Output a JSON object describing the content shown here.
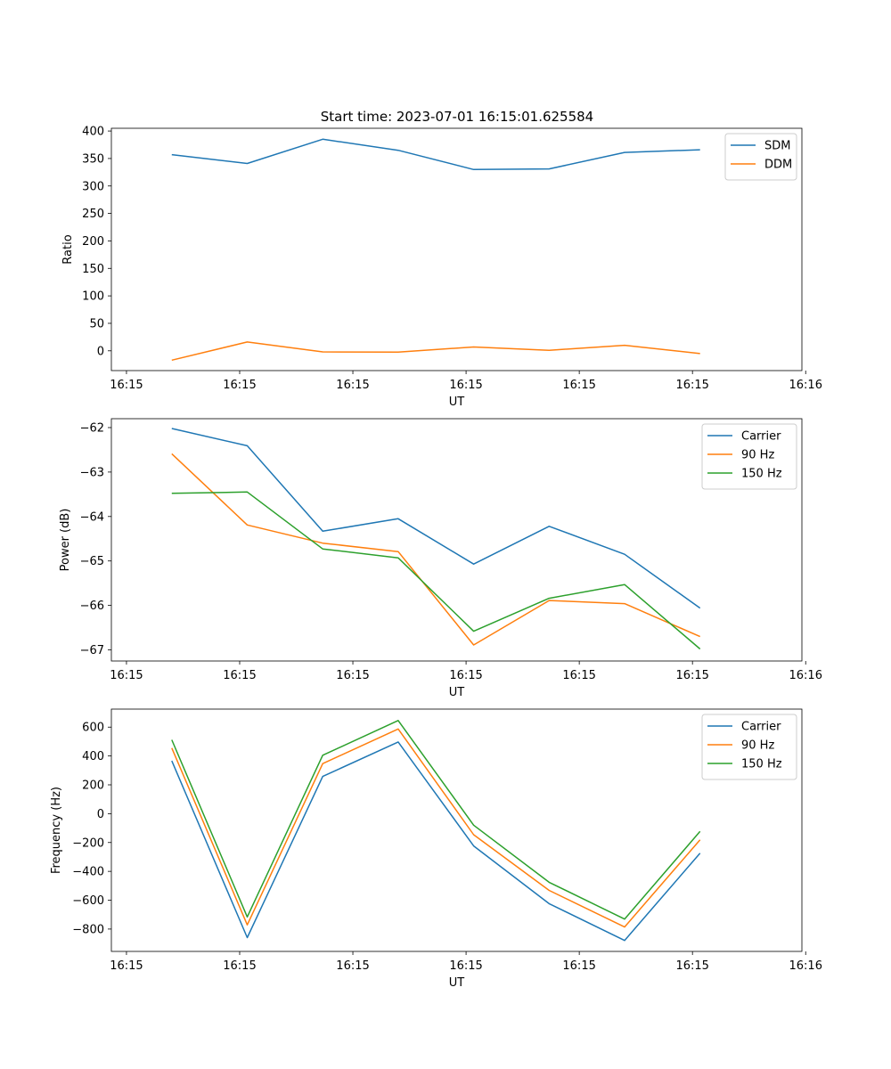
{
  "figure_title": "Start time: 2023-07-01 16:15:01.625584",
  "chart_data": [
    {
      "type": "line",
      "title": "Start time: 2023-07-01 16:15:01.625584",
      "xlabel": "UT",
      "ylabel": "Ratio",
      "x": [
        1,
        2,
        3,
        4,
        5,
        6,
        7,
        8
      ],
      "xlim": [
        0.2,
        9.35
      ],
      "xticks": [
        0.4,
        1.9,
        3.4,
        4.9,
        6.4,
        7.9,
        9.4
      ],
      "xtick_labels": [
        "16:15",
        "16:15",
        "16:15",
        "16:15",
        "16:15",
        "16:15",
        "16:16"
      ],
      "ylim": [
        -36,
        405
      ],
      "yticks": [
        0,
        50,
        100,
        150,
        200,
        250,
        300,
        350,
        400
      ],
      "legend": "upper right",
      "series": [
        {
          "name": "SDM",
          "color": "#1f77b4",
          "values": [
            357,
            341,
            385,
            365,
            330,
            331,
            361,
            366
          ]
        },
        {
          "name": "DDM",
          "color": "#ff7f0e",
          "values": [
            -17,
            16,
            -2,
            -2.5,
            7,
            1,
            10,
            -5
          ]
        }
      ]
    },
    {
      "type": "line",
      "title": "",
      "xlabel": "UT",
      "ylabel": "Power (dB)",
      "x": [
        1,
        2,
        3,
        4,
        5,
        6,
        7,
        8
      ],
      "xlim": [
        0.2,
        9.35
      ],
      "xticks": [
        0.4,
        1.9,
        3.4,
        4.9,
        6.4,
        7.9,
        9.4
      ],
      "xtick_labels": [
        "16:15",
        "16:15",
        "16:15",
        "16:15",
        "16:15",
        "16:15",
        "16:16"
      ],
      "ylim": [
        -67.25,
        -61.8
      ],
      "yticks": [
        -67,
        -66,
        -65,
        -64,
        -63,
        -62
      ],
      "legend": "upper right",
      "series": [
        {
          "name": "Carrier",
          "color": "#1f77b4",
          "values": [
            -62.02,
            -62.41,
            -64.33,
            -64.05,
            -65.07,
            -64.22,
            -64.85,
            -66.06
          ]
        },
        {
          "name": "90 Hz",
          "color": "#ff7f0e",
          "values": [
            -62.59,
            -64.19,
            -64.6,
            -64.79,
            -66.89,
            -65.89,
            -65.96,
            -66.7
          ]
        },
        {
          "name": "150 Hz",
          "color": "#2ca02c",
          "values": [
            -63.48,
            -63.45,
            -64.73,
            -64.93,
            -66.58,
            -65.84,
            -65.53,
            -66.98
          ]
        }
      ]
    },
    {
      "type": "line",
      "title": "",
      "xlabel": "UT",
      "ylabel": "Frequency (Hz)",
      "x": [
        1,
        2,
        3,
        4,
        5,
        6,
        7,
        8
      ],
      "xlim": [
        0.2,
        9.35
      ],
      "xticks": [
        0.4,
        1.9,
        3.4,
        4.9,
        6.4,
        7.9,
        9.4
      ],
      "xtick_labels": [
        "16:15",
        "16:15",
        "16:15",
        "16:15",
        "16:15",
        "16:15",
        "16:16"
      ],
      "ylim": [
        -955,
        725
      ],
      "yticks": [
        -800,
        -600,
        -400,
        -200,
        0,
        200,
        400,
        600
      ],
      "legend": "upper right",
      "series": [
        {
          "name": "Carrier",
          "color": "#1f77b4",
          "values": [
            366,
            -859,
            258,
            497,
            -224,
            -624,
            -879,
            -274
          ]
        },
        {
          "name": "90 Hz",
          "color": "#ff7f0e",
          "values": [
            455,
            -771,
            347,
            587,
            -146,
            -532,
            -786,
            -181
          ]
        },
        {
          "name": "150 Hz",
          "color": "#2ca02c",
          "values": [
            512,
            -716,
            405,
            646,
            -80,
            -476,
            -731,
            -123
          ]
        }
      ]
    }
  ]
}
